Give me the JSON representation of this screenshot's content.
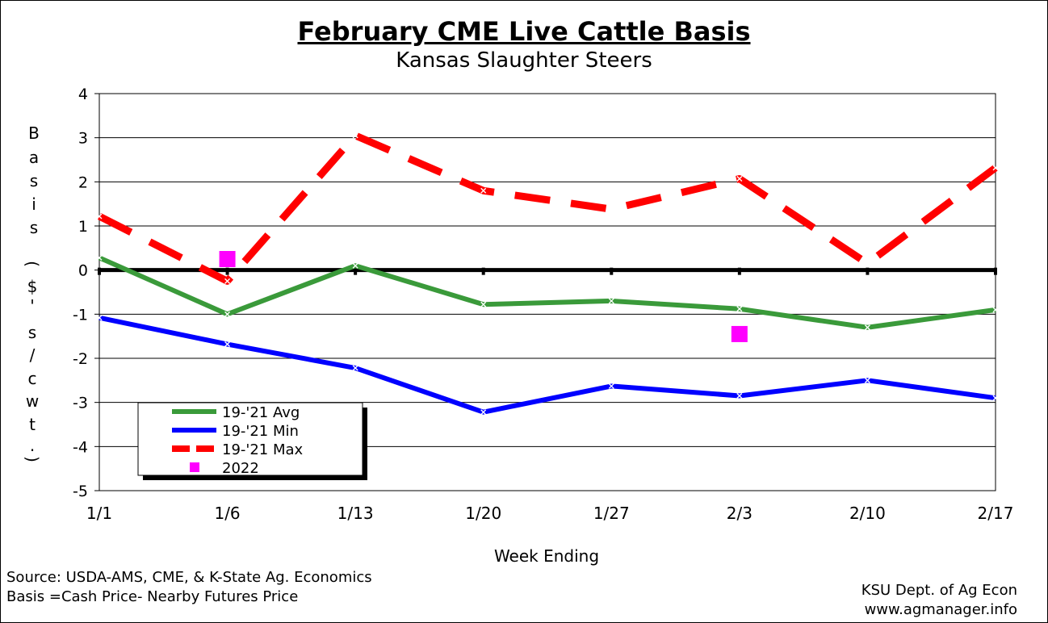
{
  "chart_data": {
    "type": "line",
    "title": "February CME Live Cattle Basis",
    "subtitle": "Kansas Slaughter Steers",
    "xlabel": "Week Ending",
    "ylabel": "Basis ($'s/cwt.)",
    "ylabel_chars": [
      "B",
      "a",
      "s",
      "i",
      "s",
      "(",
      "$",
      "'",
      "s",
      "/",
      "c",
      "w",
      "t",
      ".",
      ")"
    ],
    "categories": [
      "1/1",
      "1/6",
      "1/13",
      "1/20",
      "1/27",
      "2/3",
      "2/10",
      "2/17"
    ],
    "ylim": [
      -5,
      4
    ],
    "yticks": [
      "4",
      "3",
      "2",
      "1",
      "0",
      "-1",
      "-2",
      "-3",
      "-4",
      "-5"
    ],
    "grid": "horizontal",
    "legend_position": "bottom-left",
    "series": [
      {
        "name": "19-'21 Avg",
        "color": "#3a9a3a",
        "style": "solid",
        "values": [
          0.28,
          -1.0,
          0.1,
          -0.78,
          -0.7,
          -0.88,
          -1.3,
          -0.9
        ]
      },
      {
        "name": "19-'21 Min",
        "color": "#0000ff",
        "style": "solid",
        "values": [
          -1.08,
          -1.68,
          -2.22,
          -3.22,
          -2.63,
          -2.85,
          -2.5,
          -2.9
        ]
      },
      {
        "name": "19-'21 Max",
        "color": "#ff0000",
        "style": "dashed",
        "values": [
          1.22,
          -0.25,
          3.05,
          1.8,
          1.38,
          2.07,
          0.15,
          2.32
        ]
      },
      {
        "name": "2022",
        "color": "#ff00ff",
        "style": "marker",
        "values": [
          null,
          0.25,
          null,
          null,
          null,
          -1.45,
          null,
          null
        ]
      }
    ]
  },
  "footer": {
    "source": "Source:  USDA-AMS, CME, & K-State Ag. Economics",
    "basis_note": "Basis =Cash Price- Nearby Futures Price",
    "dept": "KSU Dept. of Ag Econ",
    "website": "www.agmanager.info"
  }
}
